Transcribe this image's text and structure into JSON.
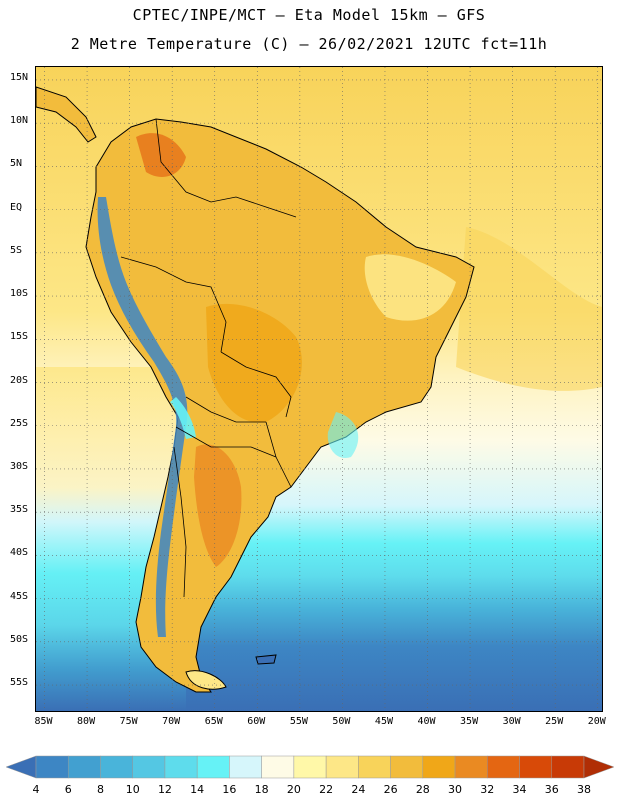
{
  "header": {
    "line1": "CPTEC/INPE/MCT –  Eta Model 15km – GFS",
    "line2": "2 Metre Temperature (C) – 26/02/2021 12UTC fct=11h"
  },
  "map": {
    "lat_labels": [
      "15N",
      "10N",
      "5N",
      "EQ",
      "5S",
      "10S",
      "15S",
      "20S",
      "25S",
      "30S",
      "35S",
      "40S",
      "45S",
      "50S",
      "55S"
    ],
    "lon_labels": [
      "85W",
      "80W",
      "75W",
      "70W",
      "65W",
      "60W",
      "55W",
      "50W",
      "45W",
      "40W",
      "35W",
      "30W",
      "25W",
      "20W"
    ],
    "lat_values": [
      15,
      10,
      5,
      0,
      -5,
      -10,
      -15,
      -20,
      -25,
      -30,
      -35,
      -40,
      -45,
      -50,
      -55
    ],
    "lon_values": [
      -85,
      -80,
      -75,
      -70,
      -65,
      -60,
      -55,
      -50,
      -45,
      -40,
      -35,
      -30,
      -25,
      -20
    ],
    "lat_range": [
      -58,
      16.5
    ],
    "lon_range": [
      -86,
      -19.5
    ],
    "variable": "2 Metre Temperature",
    "units": "C"
  },
  "colorbar": {
    "values": [
      "4",
      "6",
      "8",
      "10",
      "12",
      "14",
      "16",
      "18",
      "20",
      "22",
      "24",
      "26",
      "28",
      "30",
      "32",
      "34",
      "36",
      "38"
    ],
    "colors": [
      "#3a6fb5",
      "#3d86c4",
      "#42a0d0",
      "#49b4da",
      "#54c7e3",
      "#5edcec",
      "#66f2f6",
      "#d6f6fb",
      "#fefbe6",
      "#fff8a8",
      "#fde787",
      "#f8d35a",
      "#f2bc3c",
      "#f0a718",
      "#ea8a22",
      "#e46612",
      "#d84a08",
      "#c83a06",
      "#b02e05"
    ]
  }
}
